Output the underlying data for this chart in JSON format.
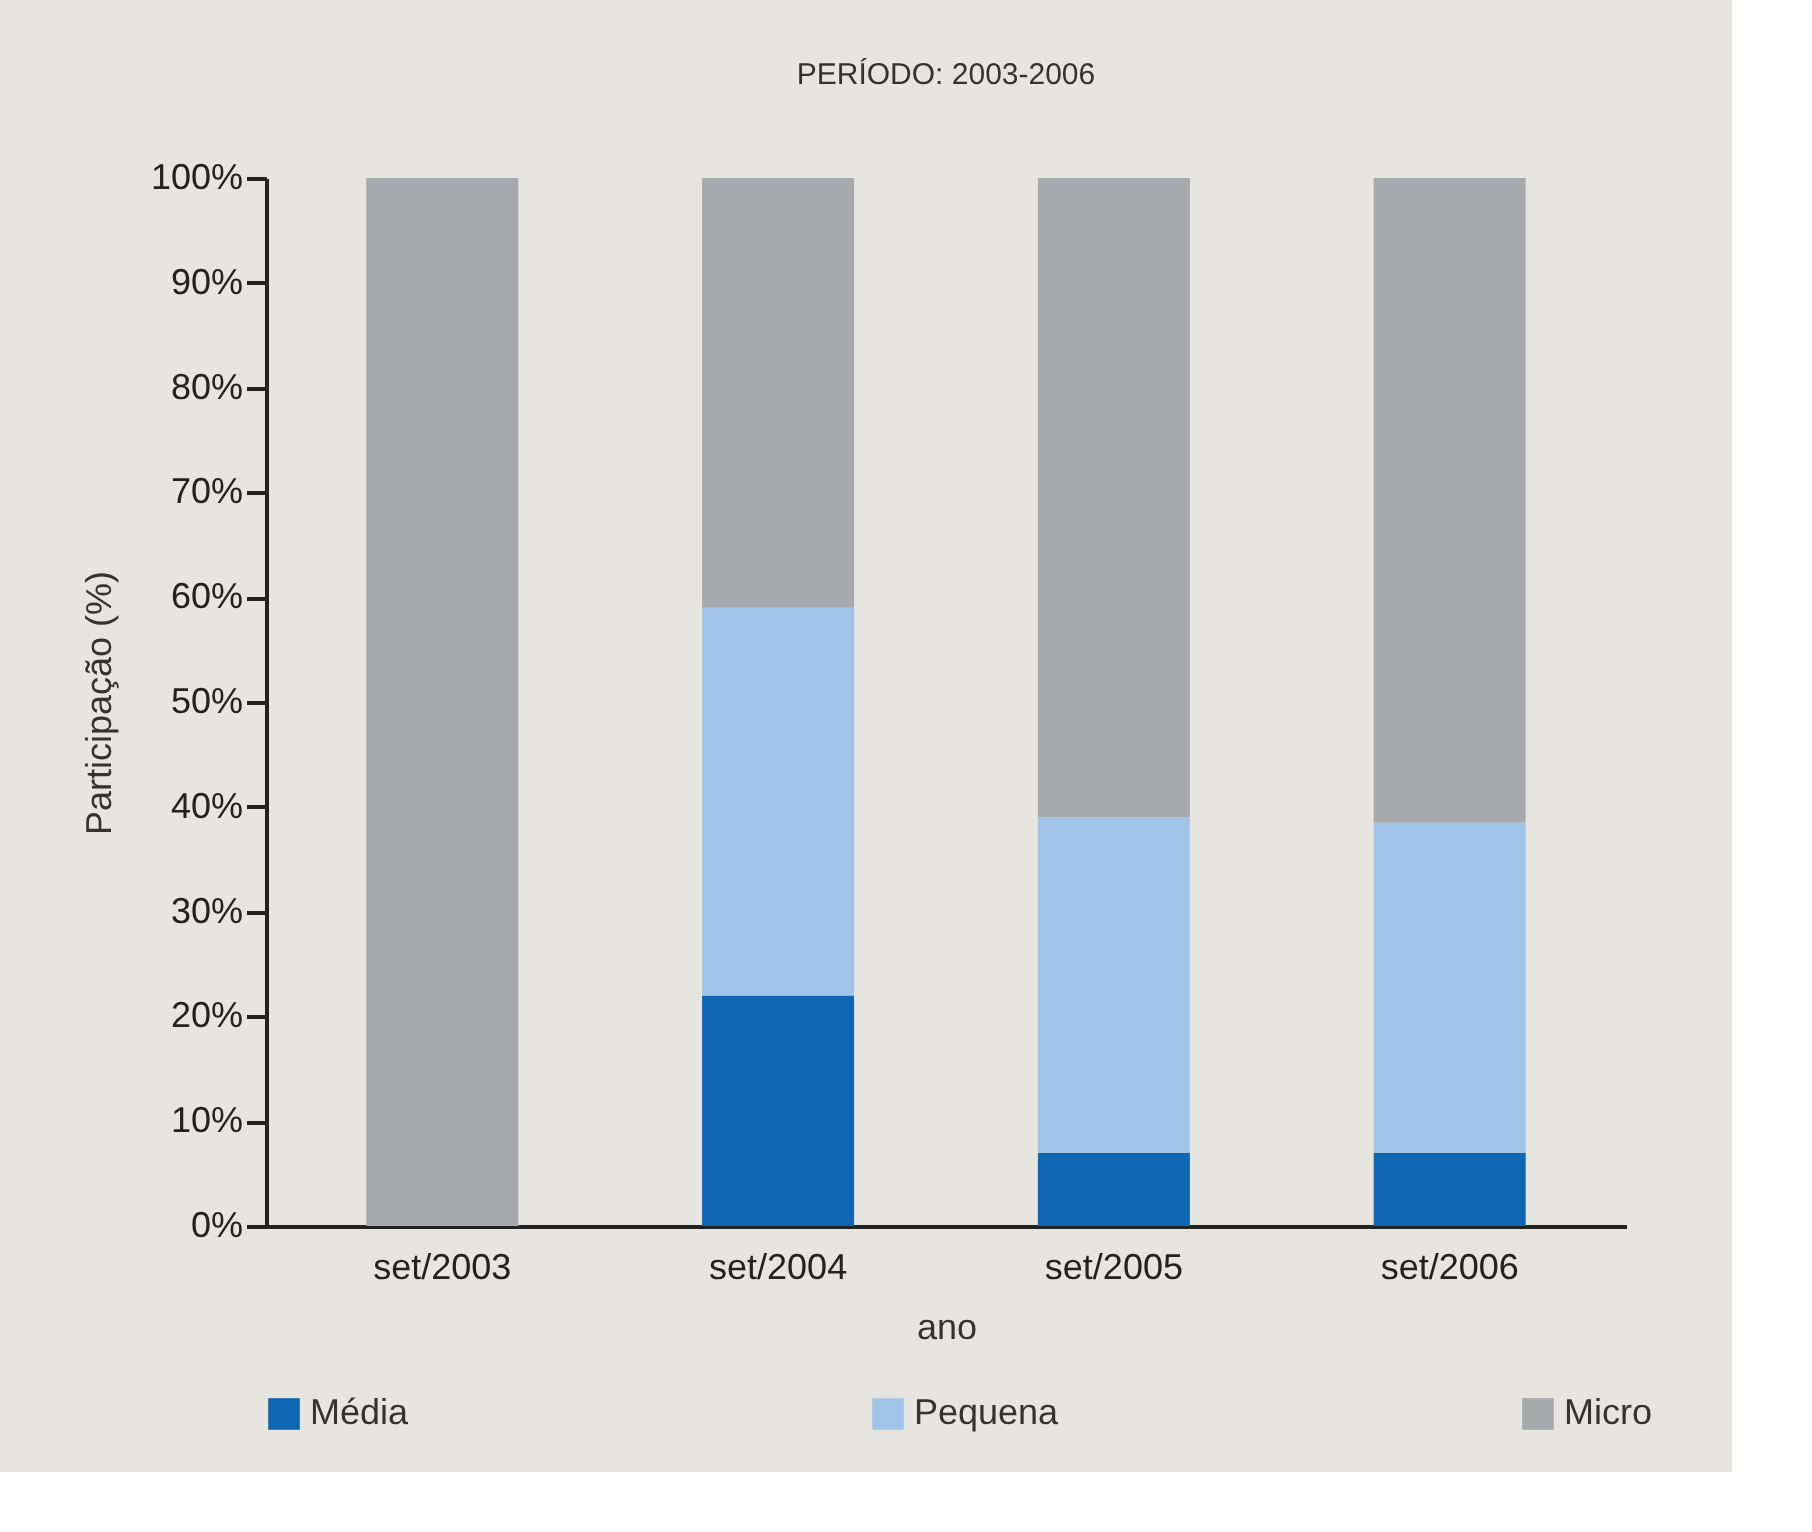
{
  "chart_data": {
    "type": "bar",
    "stacked": true,
    "title": "PERÍODO: 2003-2006",
    "xlabel": "ano",
    "ylabel": "Participação (%)",
    "categories": [
      "set/2003",
      "set/2004",
      "set/2005",
      "set/2006"
    ],
    "series": [
      {
        "name": "Média",
        "color": "#0f67b3",
        "values": [
          0,
          22,
          7,
          7
        ]
      },
      {
        "name": "Pequena",
        "color": "#a1c5e9",
        "values": [
          0,
          37,
          32,
          31.5
        ]
      },
      {
        "name": "Micro",
        "color": "#a8a9ad",
        "values": [
          100,
          41,
          61,
          61.5
        ]
      }
    ],
    "ylim": [
      0,
      100
    ],
    "yticks": [
      {
        "value": 0,
        "label": "0%"
      },
      {
        "value": 10,
        "label": "10%"
      },
      {
        "value": 20,
        "label": "20%"
      },
      {
        "value": 30,
        "label": "30%"
      },
      {
        "value": 40,
        "label": "40%"
      },
      {
        "value": 50,
        "label": "50%"
      },
      {
        "value": 60,
        "label": "60%"
      },
      {
        "value": 70,
        "label": "70%"
      },
      {
        "value": 80,
        "label": "80%"
      },
      {
        "value": 90,
        "label": "90%"
      },
      {
        "value": 100,
        "label": "100%"
      }
    ],
    "grid": false,
    "legend": "bottom"
  }
}
